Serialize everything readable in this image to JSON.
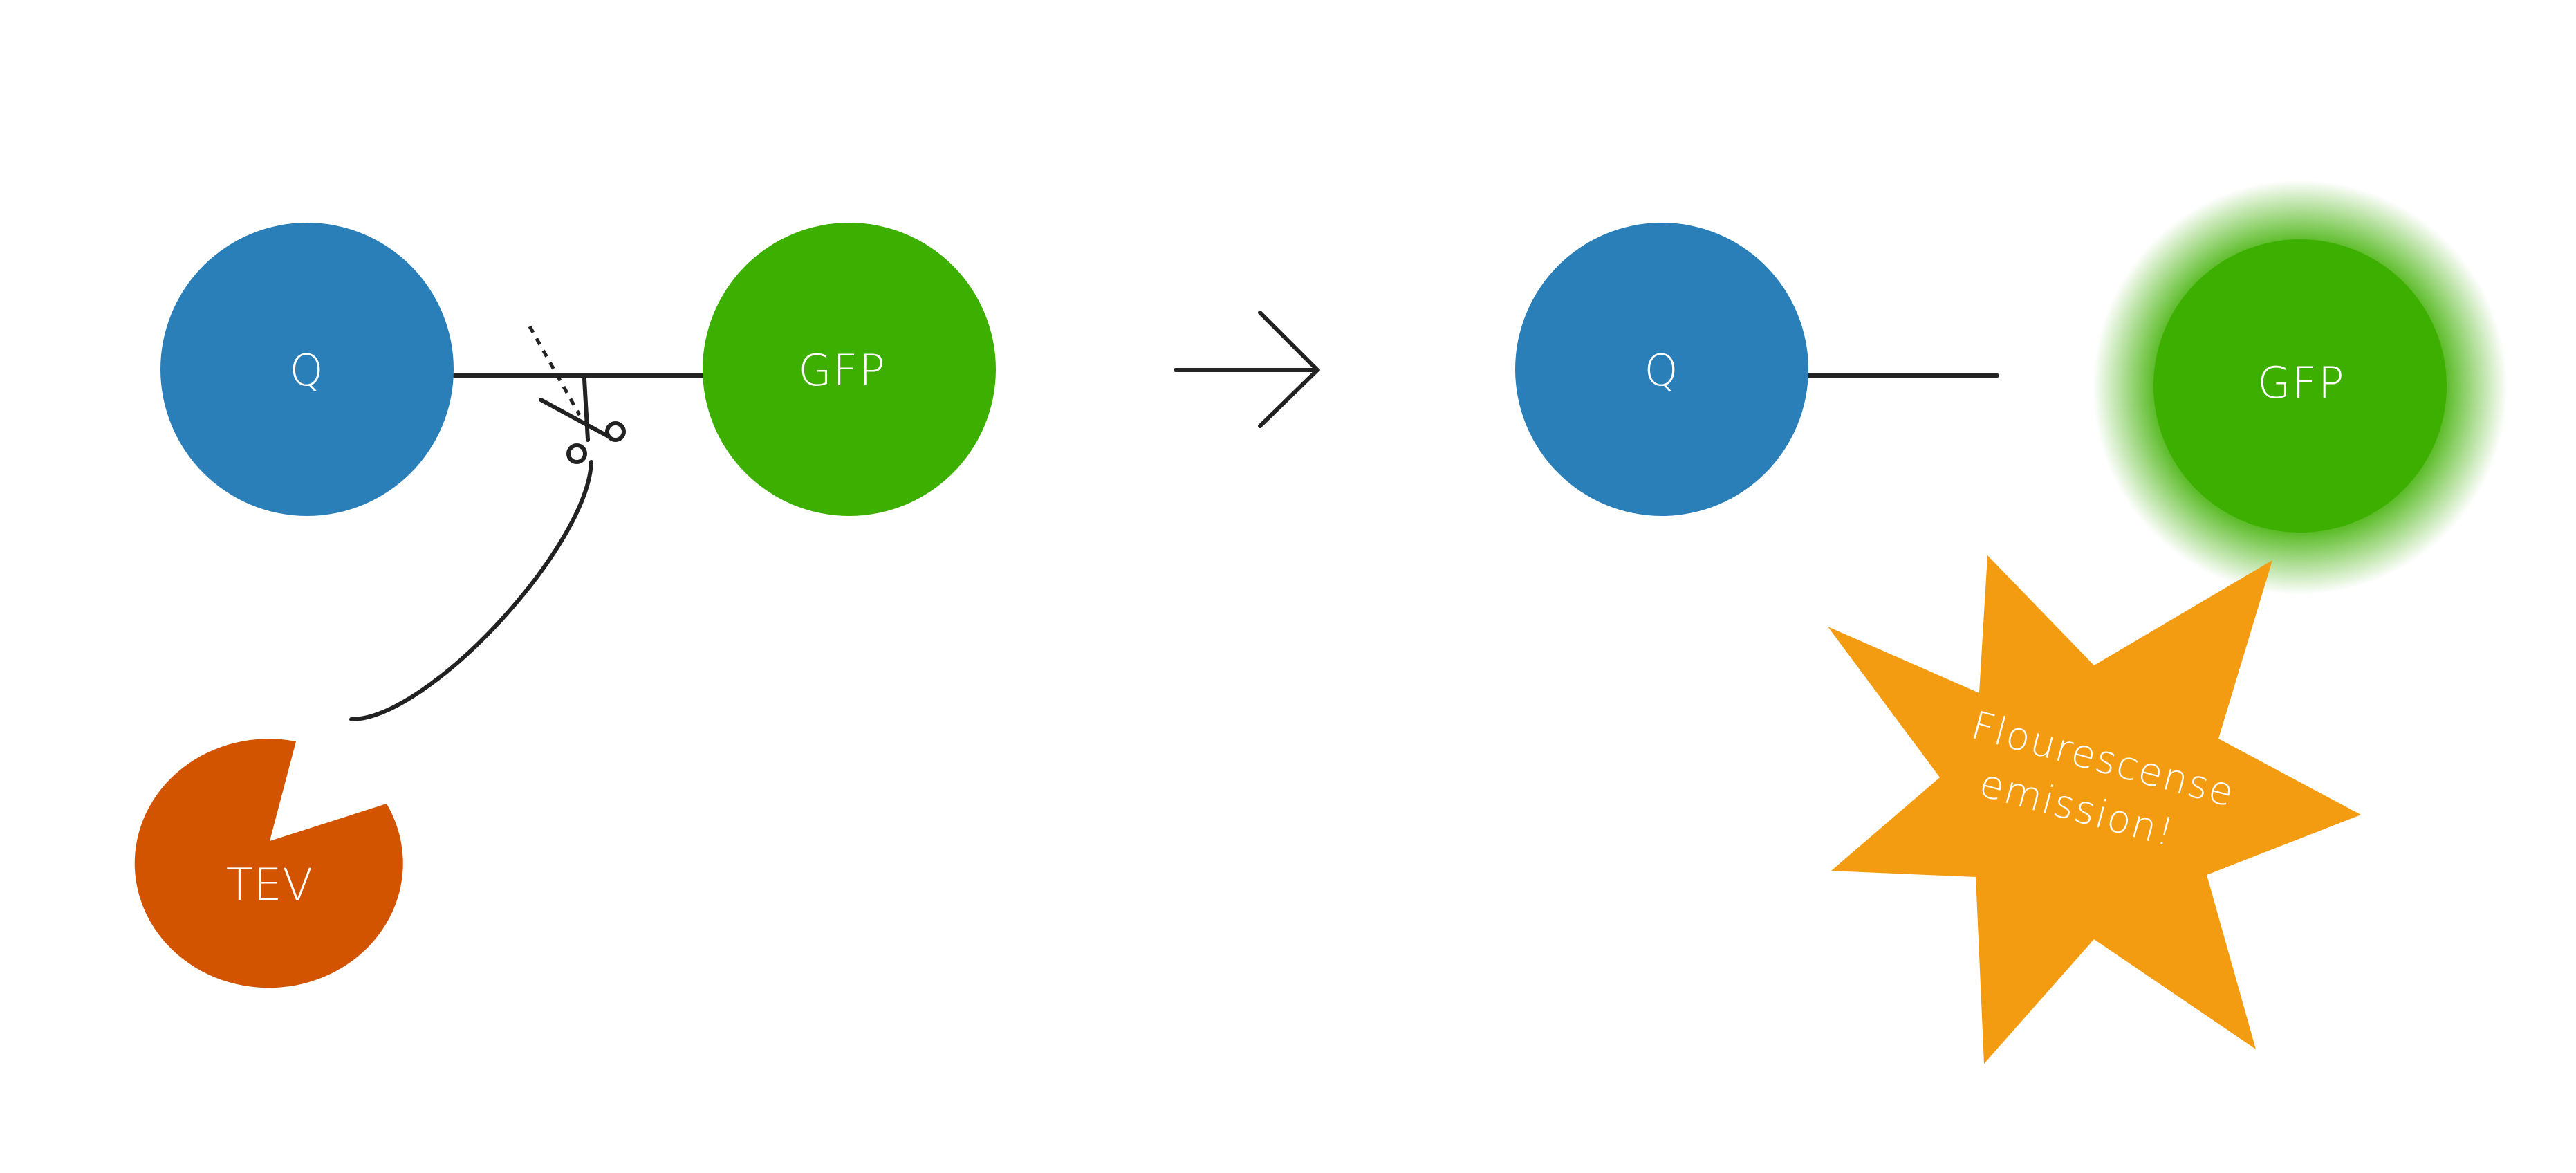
{
  "colors": {
    "quencher": "#2a7fb8",
    "gfp": "#3daf00",
    "tev": "#d25400",
    "star": "#f39c12",
    "line": "#222222",
    "text": "#ffffff"
  },
  "before": {
    "quencher_label": "Q",
    "gfp_label": "GFP",
    "protease_label": "TEV",
    "cut_icon": "scissors-icon"
  },
  "transition_icon": "arrow-right-icon",
  "after": {
    "quencher_label": "Q",
    "gfp_label": "GFP",
    "emission_line1": "Flourescense",
    "emission_line2": "emission!"
  }
}
